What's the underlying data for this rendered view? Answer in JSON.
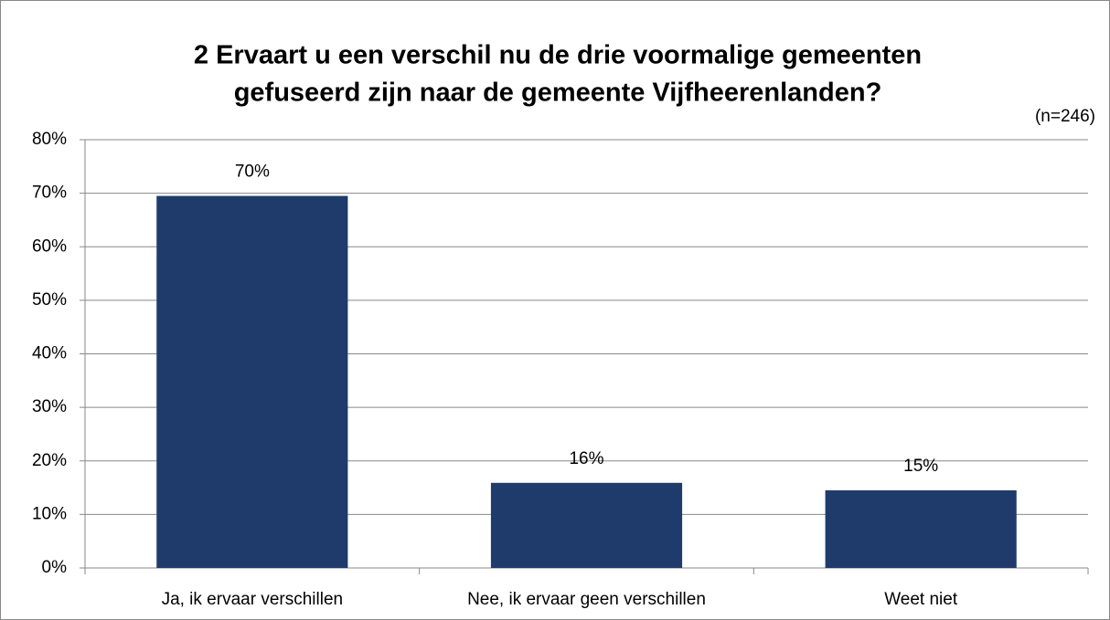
{
  "chart_data": {
    "type": "bar",
    "title": [
      "2 Ervaart u een verschil nu de drie voormalige gemeenten",
      "gefuseerd zijn naar de gemeente Vijfheerenlanden?"
    ],
    "annotation": "(n=246)",
    "categories": [
      "Ja, ik ervaar verschillen",
      "Nee, ik ervaar geen verschillen",
      "Weet niet"
    ],
    "values": [
      69.5,
      15.9,
      14.5
    ],
    "value_labels": [
      "70%",
      "16%",
      "15%"
    ],
    "color": "#1f3b6b",
    "ylim": [
      0,
      80
    ],
    "yticks": [
      {
        "value": 0,
        "label": "0%"
      },
      {
        "value": 10,
        "label": "10%"
      },
      {
        "value": 20,
        "label": "20%"
      },
      {
        "value": 30,
        "label": "30%"
      },
      {
        "value": 40,
        "label": "40%"
      },
      {
        "value": 50,
        "label": "50%"
      },
      {
        "value": 60,
        "label": "60%"
      },
      {
        "value": 70,
        "label": "70%"
      },
      {
        "value": 80,
        "label": "80%"
      }
    ],
    "grid": true
  }
}
